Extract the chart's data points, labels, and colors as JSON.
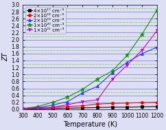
{
  "title": "",
  "xlabel": "Temperature (K)",
  "ylabel": "ZT",
  "xlim": [
    300,
    1200
  ],
  "ylim": [
    0,
    3.0
  ],
  "yticks": [
    0.0,
    0.2,
    0.4,
    0.6,
    0.8,
    1.0,
    1.2,
    1.4,
    1.6,
    1.8,
    2.0,
    2.2,
    2.4,
    2.6,
    2.8,
    3.0
  ],
  "xticks": [
    300,
    400,
    500,
    600,
    700,
    800,
    900,
    1000,
    1100,
    1200
  ],
  "hgrid_blue": [
    0.2,
    0.4,
    0.6,
    0.8,
    1.0,
    1.2,
    1.4,
    1.6,
    1.8,
    2.0,
    2.2,
    2.4,
    2.6,
    2.8,
    3.0
  ],
  "hgrid_green_dashed": [
    0.5,
    0.9,
    1.3,
    1.7,
    2.1,
    2.5,
    2.9
  ],
  "series": [
    {
      "label": "4×10¹⁷ cm⁻³",
      "color": "#000000",
      "marker": "s",
      "markersize": 3,
      "linewidth": 0.8,
      "x": [
        300,
        400,
        500,
        600,
        700,
        800,
        900,
        1000,
        1100,
        1200
      ],
      "y": [
        0.01,
        0.01,
        0.02,
        0.03,
        0.04,
        0.05,
        0.06,
        0.06,
        0.07,
        0.08
      ]
    },
    {
      "label": "2×10¹⁸ cm⁻³",
      "color": "#ff0000",
      "marker": "o",
      "markersize": 3,
      "linewidth": 0.8,
      "x": [
        300,
        400,
        500,
        600,
        700,
        800,
        900,
        1000,
        1100,
        1200
      ],
      "y": [
        0.01,
        0.03,
        0.05,
        0.08,
        0.1,
        0.15,
        0.17,
        0.18,
        0.19,
        0.2
      ]
    },
    {
      "label": "2×10¹⁹ cm⁻³",
      "color": "#3333ff",
      "marker": "^",
      "markersize": 3,
      "linewidth": 0.8,
      "x": [
        300,
        400,
        500,
        600,
        700,
        800,
        900,
        1000,
        1100,
        1200
      ],
      "y": [
        0.02,
        0.05,
        0.12,
        0.22,
        0.47,
        0.66,
        1.05,
        1.35,
        1.6,
        1.78
      ]
    },
    {
      "label": "1×10²⁰ cm⁻³",
      "color": "#009900",
      "marker": "*",
      "markersize": 5,
      "linewidth": 0.8,
      "x": [
        300,
        400,
        500,
        600,
        700,
        800,
        900,
        1000,
        1100,
        1200
      ],
      "y": [
        0.02,
        0.08,
        0.2,
        0.35,
        0.57,
        0.87,
        1.1,
        1.55,
        2.16,
        2.85
      ]
    },
    {
      "label": "1×10²¹ cm⁻³",
      "color": "#cc00cc",
      "marker": "v",
      "markersize": 3,
      "linewidth": 0.8,
      "x": [
        300,
        400,
        500,
        600,
        700,
        800,
        900,
        1000,
        1100,
        1200
      ],
      "y": [
        0.02,
        0.04,
        0.06,
        0.13,
        0.22,
        0.27,
        0.86,
        1.27,
        1.7,
        2.26
      ]
    }
  ],
  "legend_loc": "upper left",
  "legend_fontsize": 5.0,
  "axis_labelsize": 7,
  "tick_labelsize": 5.5,
  "bg_color": "#dde0f5",
  "plot_bg": "#dde0f5",
  "blue_grid_color": "#8888cc",
  "green_grid_color": "#88cc44"
}
